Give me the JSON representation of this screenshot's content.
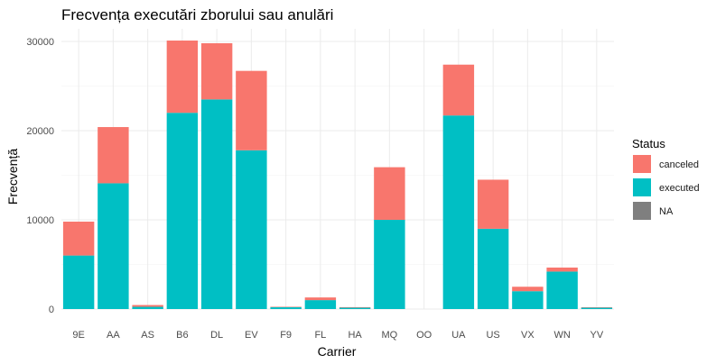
{
  "chart_data": {
    "type": "bar",
    "stacked": true,
    "title": "Frecvența executări zborului sau anulări",
    "xlabel": "Carrier",
    "ylabel": "Frecvență",
    "categories": [
      "9E",
      "AA",
      "AS",
      "B6",
      "DL",
      "EV",
      "F9",
      "FL",
      "HA",
      "MQ",
      "OO",
      "UA",
      "US",
      "VX",
      "WN",
      "YV"
    ],
    "series": [
      {
        "name": "executed",
        "color": "#00BFC4",
        "values": [
          6000,
          14100,
          250,
          22000,
          23500,
          17800,
          200,
          1000,
          150,
          10000,
          0,
          21700,
          9000,
          2000,
          4200,
          150
        ]
      },
      {
        "name": "canceled",
        "color": "#F8766D",
        "values": [
          3800,
          6300,
          200,
          8100,
          6300,
          8900,
          50,
          300,
          60,
          5900,
          0,
          5700,
          5500,
          500,
          450,
          50
        ]
      },
      {
        "name": "NA",
        "color": "#7F7F7F",
        "values": [
          0,
          0,
          0,
          0,
          0,
          0,
          0,
          0,
          0,
          0,
          0,
          0,
          0,
          0,
          0,
          0
        ]
      }
    ],
    "ylim": [
      0,
      32000
    ],
    "yticks": [
      0,
      10000,
      20000,
      30000
    ],
    "grid": true,
    "legend": {
      "title": "Status",
      "position": "right",
      "entries": [
        "canceled",
        "executed",
        "NA"
      ]
    }
  }
}
